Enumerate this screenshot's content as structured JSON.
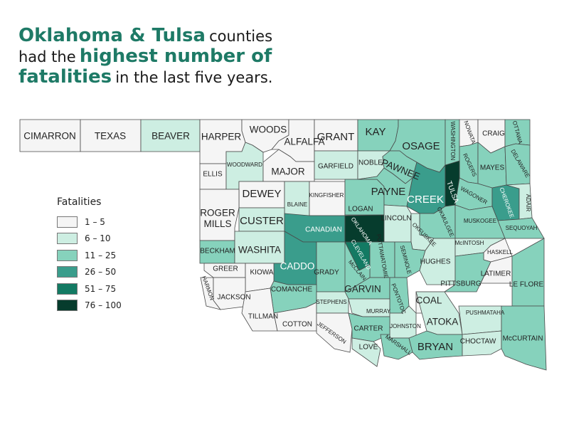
{
  "headline": {
    "line1_strong": "Oklahoma & Tulsa",
    "line1_rest": "counties",
    "line2_pre": "had the",
    "line2_strong": "highest number of",
    "line3_strong": "fatalities",
    "line3_rest": "in the last five years."
  },
  "legend": {
    "title": "Fatalities",
    "items": [
      {
        "label": "1 – 5",
        "color": "#f5f5f5"
      },
      {
        "label": "6 – 10",
        "color": "#cdeee2"
      },
      {
        "label": "11 – 25",
        "color": "#86d2bc"
      },
      {
        "label": "26 – 50",
        "color": "#3a9d8c"
      },
      {
        "label": "51 – 75",
        "color": "#137a63"
      },
      {
        "label": "76 – 100",
        "color": "#063c2d"
      }
    ]
  },
  "counties": {
    "cimarron": {
      "name": "CIMARRON",
      "class": 1
    },
    "texas": {
      "name": "TEXAS",
      "class": 1
    },
    "beaver": {
      "name": "BEAVER",
      "class": 2
    },
    "harper": {
      "name": "HARPER",
      "class": 1
    },
    "woods": {
      "name": "WOODS",
      "class": 1
    },
    "alfalfa": {
      "name": "ALFALFA",
      "class": 1
    },
    "grant": {
      "name": "GRANT",
      "class": 1
    },
    "kay": {
      "name": "KAY",
      "class": 3
    },
    "osage": {
      "name": "OSAGE",
      "class": 3
    },
    "washington": {
      "name": "WASHINGTON",
      "class": 3
    },
    "nowata": {
      "name": "NOWATA",
      "class": 1
    },
    "craig": {
      "name": "CRAIG",
      "class": 1
    },
    "ottawa": {
      "name": "OTTAWA",
      "class": 3
    },
    "ellis": {
      "name": "ELLIS",
      "class": 1
    },
    "woodward": {
      "name": "WOODWARD",
      "class": 2
    },
    "major": {
      "name": "MAJOR",
      "class": 1
    },
    "garfield": {
      "name": "GARFIELD",
      "class": 2
    },
    "noble": {
      "name": "NOBLE",
      "class": 2
    },
    "pawnee": {
      "name": "PAWNEE",
      "class": 3
    },
    "rogers": {
      "name": "ROGERS",
      "class": 3
    },
    "mayes": {
      "name": "MAYES",
      "class": 3
    },
    "delaware": {
      "name": "DELAWARE",
      "class": 3
    },
    "dewey": {
      "name": "DEWEY",
      "class": 1
    },
    "blaine": {
      "name": "BLAINE",
      "class": 2
    },
    "kingfisher": {
      "name": "KINGFISHER",
      "class": 1
    },
    "logan": {
      "name": "LOGAN",
      "class": 3
    },
    "payne": {
      "name": "PAYNE",
      "class": 3
    },
    "creek": {
      "name": "CREEK",
      "class": 4
    },
    "tulsa": {
      "name": "TULSA",
      "class": 6
    },
    "wagoner": {
      "name": "WAGONER",
      "class": 3
    },
    "cherokee": {
      "name": "CHEROKEE",
      "class": 4
    },
    "adair": {
      "name": "ADAIR",
      "class": 2
    },
    "roger_mills": {
      "name": "ROGER\nMILLS",
      "class": 1
    },
    "custer": {
      "name": "CUSTER",
      "class": 2
    },
    "canadian": {
      "name": "CANADIAN",
      "class": 4
    },
    "oklahoma": {
      "name": "OKLAHOMA",
      "class": 6
    },
    "lincoln": {
      "name": "LINCOLN",
      "class": 2
    },
    "okmulgee": {
      "name": "OKMULGEE",
      "class": 3
    },
    "muskogee": {
      "name": "MUSKOGEE",
      "class": 3
    },
    "sequoyah": {
      "name": "SEQUOYAH",
      "class": 3
    },
    "okfuskee": {
      "name": "OKFUSKEE",
      "class": 2
    },
    "beckham": {
      "name": "BECKHAM",
      "class": 3
    },
    "washita": {
      "name": "WASHITA",
      "class": 2
    },
    "caddo": {
      "name": "CADDO",
      "class": 4
    },
    "cleveland": {
      "name": "CLEVELAND",
      "class": 5
    },
    "pottawatomie": {
      "name": "POTTAWATOMIE",
      "class": 3
    },
    "seminole": {
      "name": "SEMINOLE",
      "class": 3
    },
    "hughes": {
      "name": "HUGHES",
      "class": 2
    },
    "mcintosh": {
      "name": "McINTOSH",
      "class": 2
    },
    "haskell": {
      "name": "HASKELL",
      "class": 1
    },
    "greer": {
      "name": "GREER",
      "class": 1
    },
    "kiowa": {
      "name": "KIOWA",
      "class": 1
    },
    "grady": {
      "name": "GRADY",
      "class": 3
    },
    "mcclain": {
      "name": "McCLAIN",
      "class": 3
    },
    "pittsburg": {
      "name": "PITTSBURG",
      "class": 3
    },
    "latimer": {
      "name": "LATIMER",
      "class": 1
    },
    "le_flore": {
      "name": "LE FLORE",
      "class": 3
    },
    "harmon": {
      "name": "HARMON",
      "class": 1
    },
    "jackson": {
      "name": "JACKSON",
      "class": 1
    },
    "comanche": {
      "name": "COMANCHE",
      "class": 3
    },
    "garvin": {
      "name": "GARVIN",
      "class": 3
    },
    "pontotoc": {
      "name": "PONTOTOC",
      "class": 3
    },
    "coal": {
      "name": "COAL",
      "class": 1
    },
    "tillman": {
      "name": "TILLMAN",
      "class": 1
    },
    "cotton": {
      "name": "COTTON",
      "class": 1
    },
    "stephens": {
      "name": "STEPHENS",
      "class": 2
    },
    "murray": {
      "name": "MURRAY",
      "class": 2
    },
    "johnston": {
      "name": "JOHNSTON",
      "class": 2
    },
    "atoka": {
      "name": "ATOKA",
      "class": 2
    },
    "pushmataha": {
      "name": "PUSHMATAHA",
      "class": 2
    },
    "jefferson": {
      "name": "JEFFERSON",
      "class": 1
    },
    "carter": {
      "name": "CARTER",
      "class": 3
    },
    "love": {
      "name": "LOVE",
      "class": 2
    },
    "marshall": {
      "name": "MARSHALL",
      "class": 3
    },
    "bryan": {
      "name": "BRYAN",
      "class": 3
    },
    "choctaw": {
      "name": "CHOCTAW",
      "class": 2
    },
    "mccurtain": {
      "name": "McCURTAIN",
      "class": 3
    }
  }
}
